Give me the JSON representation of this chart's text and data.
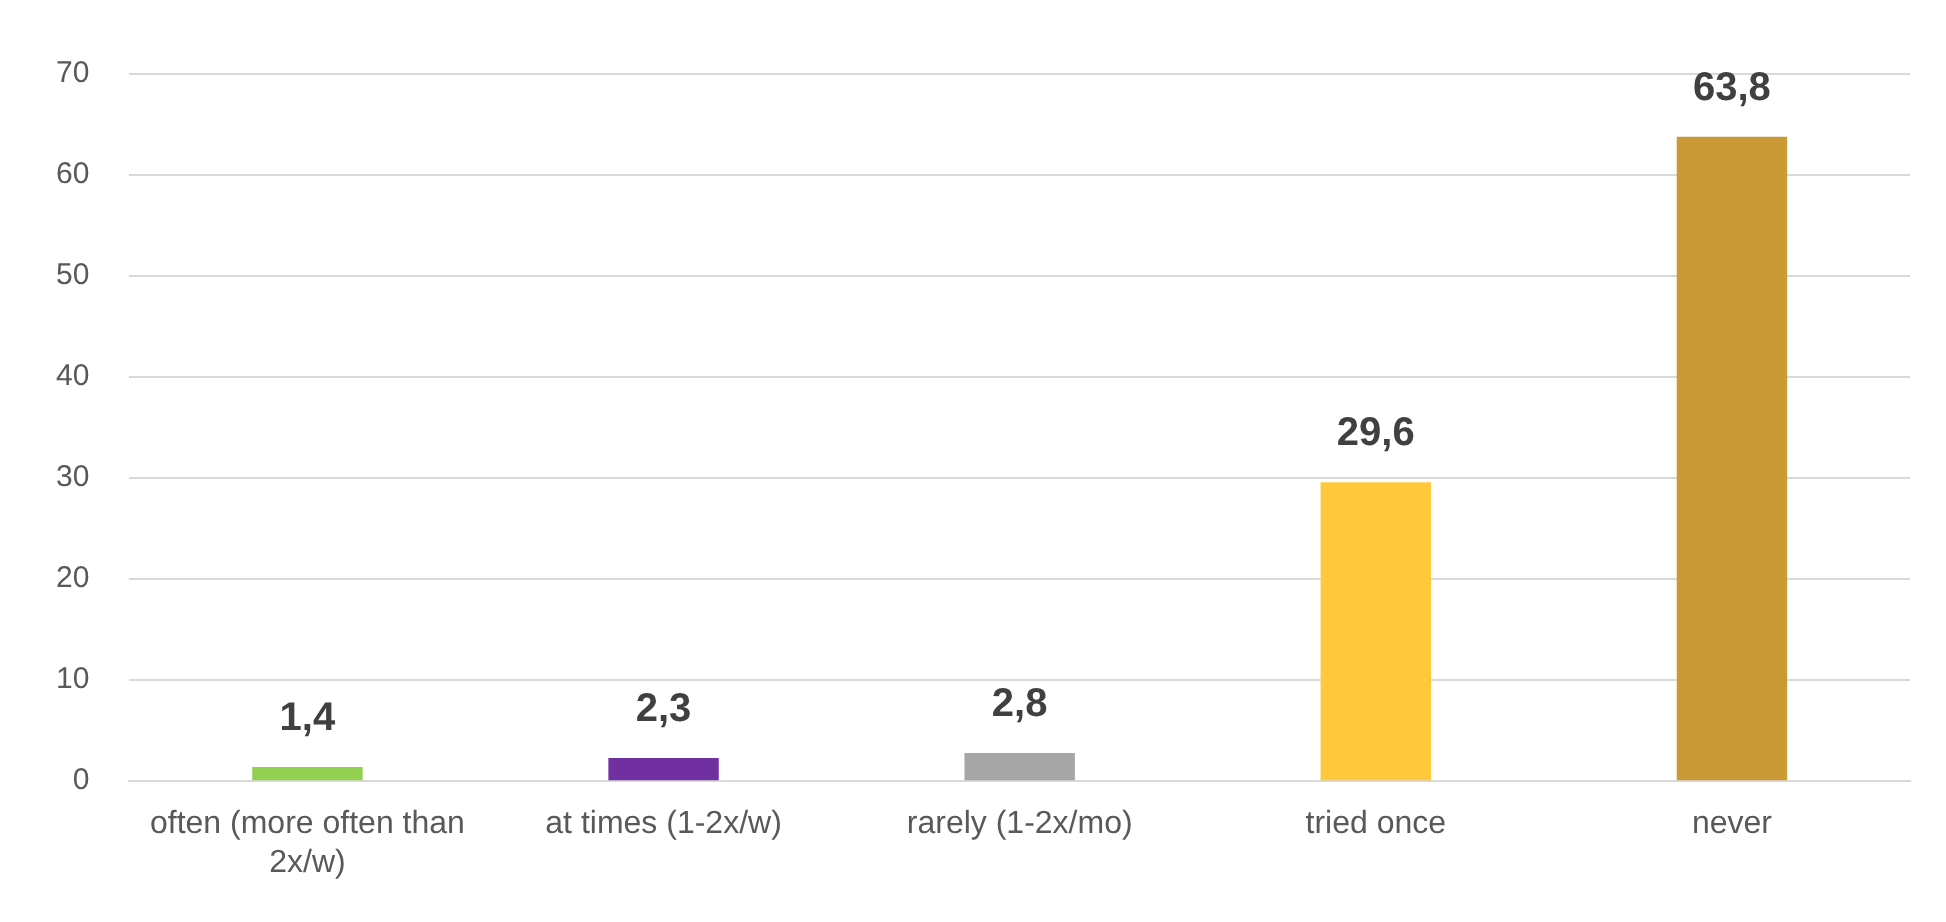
{
  "chart_data": {
    "type": "bar",
    "categories": [
      "often (more often than 2x/w)",
      "at times (1-2x/w)",
      "rarely (1-2x/mo)",
      "tried once",
      "never"
    ],
    "values": [
      1.4,
      2.3,
      2.8,
      29.6,
      63.8
    ],
    "colors": [
      "#92d050",
      "#7030a0",
      "#a6a6a6",
      "#ffc83d",
      "#c99a35"
    ],
    "value_labels": [
      "1,4",
      "2,3",
      "2,8",
      "29,6",
      "63,8"
    ],
    "ylim": [
      0,
      70
    ],
    "yticks": [
      0,
      10,
      20,
      30,
      40,
      50,
      60,
      70
    ],
    "grid": "y",
    "legend": false
  }
}
